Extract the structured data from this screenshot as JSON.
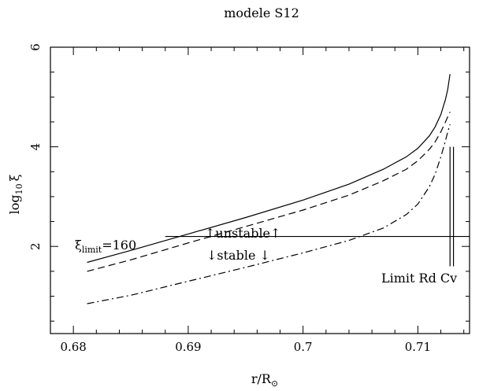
{
  "chart_data": {
    "type": "line",
    "title": "modele S12",
    "xlabel": "r/R⊙",
    "xlabel_main": "r/R",
    "xlabel_sub": "⊙",
    "ylabel": "log10 ξ",
    "ylabel_main": "log",
    "ylabel_sub": "10",
    "ylabel_sym": "ξ",
    "xlim": [
      0.678,
      0.7145
    ],
    "ylim": [
      0.25,
      6.0
    ],
    "xticks": [
      0.68,
      0.69,
      0.7,
      0.71
    ],
    "xtick_labels": [
      "0.68",
      "0.69",
      "0.7",
      "0.71"
    ],
    "yticks": [
      2,
      4,
      6
    ],
    "ytick_labels": [
      "2",
      "4",
      "6"
    ],
    "grid": false,
    "series": [
      {
        "style": "solid",
        "x": [
          0.6812,
          0.685,
          0.69,
          0.695,
          0.7,
          0.704,
          0.707,
          0.709,
          0.71,
          0.711,
          0.7115,
          0.712,
          0.7124,
          0.7126,
          0.7128
        ],
        "y": [
          1.68,
          1.92,
          2.25,
          2.58,
          2.93,
          3.25,
          3.55,
          3.8,
          3.97,
          4.22,
          4.4,
          4.65,
          4.95,
          5.15,
          5.46
        ]
      },
      {
        "style": "dashed",
        "x": [
          0.6812,
          0.685,
          0.69,
          0.695,
          0.7,
          0.704,
          0.707,
          0.709,
          0.71,
          0.711,
          0.7115,
          0.712,
          0.7124,
          0.7126,
          0.7128
        ],
        "y": [
          1.5,
          1.73,
          2.07,
          2.4,
          2.73,
          3.03,
          3.32,
          3.55,
          3.72,
          3.95,
          4.1,
          4.3,
          4.5,
          4.6,
          4.7
        ]
      },
      {
        "style": "dashdot",
        "x": [
          0.6812,
          0.685,
          0.69,
          0.695,
          0.7,
          0.704,
          0.707,
          0.709,
          0.71,
          0.711,
          0.7115,
          0.712,
          0.7124,
          0.7126,
          0.7128
        ],
        "y": [
          0.85,
          1.02,
          1.3,
          1.58,
          1.87,
          2.12,
          2.37,
          2.64,
          2.85,
          3.2,
          3.45,
          3.8,
          4.12,
          4.3,
          4.45
        ]
      }
    ],
    "limit_line": {
      "y": 2.2,
      "x_start": 0.688,
      "x_end": 0.7145
    },
    "vertical_lines": [
      {
        "x": 0.7128,
        "y_top": 4.0,
        "y_bottom": 1.6
      },
      {
        "x": 0.7131,
        "y_top": 4.0,
        "y_bottom": 1.6
      }
    ],
    "annotations": {
      "xi_limit": {
        "main": "ξ",
        "sub": "limit",
        "rest": "=160"
      },
      "unstable": "↑unstable↑",
      "stable": "↓stable ↓",
      "limit_rd_cv": "Limit Rd Cv"
    }
  }
}
